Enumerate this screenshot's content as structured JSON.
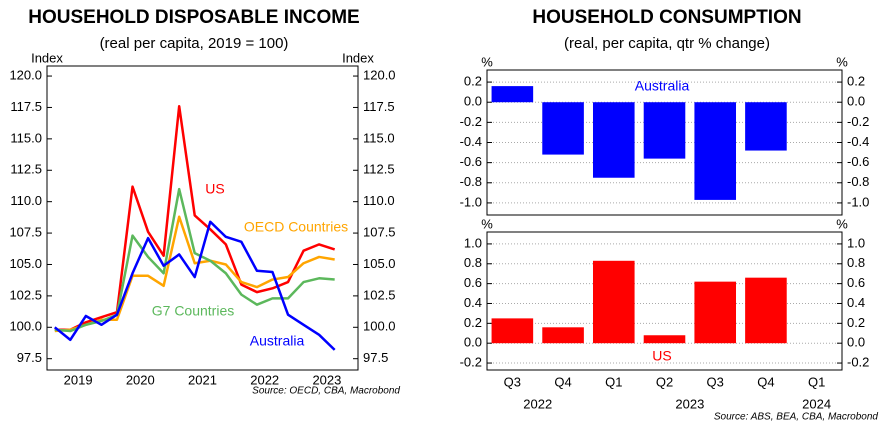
{
  "chart_data": [
    {
      "type": "line",
      "title": "HOUSEHOLD DISPOSABLE INCOME",
      "subtitle": "(real per capita, 2019 = 100)",
      "y_label": "Index",
      "y2_label": "Index",
      "source": "Source: OECD, CBA, Macrobond",
      "grid": false,
      "x": [
        2019.125,
        2019.375,
        2019.625,
        2019.875,
        2020.125,
        2020.375,
        2020.625,
        2020.875,
        2021.125,
        2021.375,
        2021.625,
        2021.875,
        2022.125,
        2022.375,
        2022.625,
        2022.875,
        2023.125,
        2023.375,
        2023.625
      ],
      "xlim": [
        2019,
        2024
      ],
      "xticks": [
        {
          "value": 2019.5,
          "label": "2019"
        },
        {
          "value": 2020.5,
          "label": "2020"
        },
        {
          "value": 2021.5,
          "label": "2021"
        },
        {
          "value": 2022.5,
          "label": "2022"
        },
        {
          "value": 2023.5,
          "label": "2023"
        }
      ],
      "ylim": [
        96.6,
        120.8
      ],
      "yticks": [
        97.5,
        {
          "value": 100,
          "label": "100.0"
        },
        102.5,
        {
          "value": 105,
          "label": "105.0"
        },
        107.5,
        {
          "value": 110,
          "label": "110.0"
        },
        112.5,
        {
          "value": 115,
          "label": "115.0"
        },
        117.5,
        {
          "value": 120,
          "label": "120.0"
        }
      ],
      "y2lim": [
        96.6,
        120.8
      ],
      "y2ticks": [
        97.5,
        {
          "value": 100,
          "label": "100.0"
        },
        102.5,
        {
          "value": 105,
          "label": "105.0"
        },
        107.5,
        {
          "value": 110,
          "label": "110.0"
        },
        112.5,
        {
          "value": 115,
          "label": "115.0"
        },
        117.5,
        {
          "value": 120,
          "label": "120.0"
        }
      ],
      "series": [
        {
          "name": "US",
          "color": "#ff0000",
          "values": [
            99.8,
            99.8,
            100.4,
            100.8,
            101.2,
            111.2,
            107.6,
            105.7,
            117.6,
            108.9,
            107.8,
            106.6,
            103.4,
            102.8,
            103.1,
            103.6,
            106.1,
            106.6,
            106.2
          ]
        },
        {
          "name": "OECD Countries",
          "color": "#ffa500",
          "values": [
            99.7,
            99.8,
            100.2,
            100.6,
            100.6,
            104.1,
            104.1,
            103.3,
            108.8,
            105.1,
            105.3,
            105.0,
            103.6,
            103.2,
            103.8,
            104.0,
            105.1,
            105.6,
            105.4
          ]
        },
        {
          "name": "G7 Countries",
          "color": "#5cb85c",
          "values": [
            99.8,
            99.7,
            100.2,
            100.5,
            101.0,
            107.3,
            105.6,
            104.3,
            111.0,
            105.9,
            105.3,
            104.3,
            102.6,
            101.8,
            102.3,
            102.3,
            103.6,
            103.9,
            103.8
          ]
        },
        {
          "name": "Australia",
          "color": "#0000ff",
          "values": [
            100.0,
            99.0,
            100.9,
            100.2,
            101.0,
            104.3,
            107.1,
            104.9,
            105.8,
            104.0,
            108.4,
            107.2,
            106.8,
            104.5,
            104.4,
            101.0,
            100.2,
            99.4,
            98.2
          ]
        }
      ]
    },
    {
      "type": "bar",
      "title": "HOUSEHOLD CONSUMPTION",
      "subtitle": "(real, per capita, qtr % change)",
      "y_label": "%",
      "y2_label": "%",
      "grid": true,
      "ylim": [
        -1.12,
        0.32
      ],
      "yticks": [
        0.2,
        {
          "value": 0,
          "label": "0.0"
        },
        -0.2,
        -0.4,
        -0.6,
        -0.8,
        {
          "value": -1,
          "label": "-1.0"
        }
      ],
      "y2lim": [
        -1.12,
        0.32
      ],
      "y2ticks": [
        0.2,
        {
          "value": 0,
          "label": "0.0"
        },
        -0.2,
        -0.4,
        -0.6,
        -0.8,
        {
          "value": -1,
          "label": "-1.0"
        }
      ],
      "series": [
        {
          "name": "Australia",
          "color": "#0000ff",
          "values": [
            0.16,
            -0.52,
            -0.75,
            -0.56,
            -0.97,
            -0.48,
            null
          ]
        }
      ]
    },
    {
      "type": "bar",
      "y_label": "%",
      "y2_label": "%",
      "grid": true,
      "source": "Source: ABS, BEA, CBA, Macrobond",
      "categories": [
        "Q3",
        "Q4",
        "Q1",
        "Q2",
        "Q3",
        "Q4",
        "Q1"
      ],
      "year_labels": [
        "2022",
        "2023",
        "2024"
      ],
      "ylim": [
        -0.27,
        1.12
      ],
      "yticks": [
        {
          "value": 1,
          "label": "1.0"
        },
        0.8,
        0.6,
        0.4,
        0.2,
        {
          "value": 0,
          "label": "0.0"
        },
        -0.2
      ],
      "y2lim": [
        -0.27,
        1.12
      ],
      "y2ticks": [
        {
          "value": 1,
          "label": "1.0"
        },
        0.8,
        0.6,
        0.4,
        0.2,
        {
          "value": 0,
          "label": "0.0"
        },
        -0.2
      ],
      "series": [
        {
          "name": "US",
          "color": "#ff0000",
          "values": [
            0.25,
            0.16,
            0.83,
            0.08,
            0.62,
            0.66,
            null
          ]
        }
      ]
    }
  ]
}
